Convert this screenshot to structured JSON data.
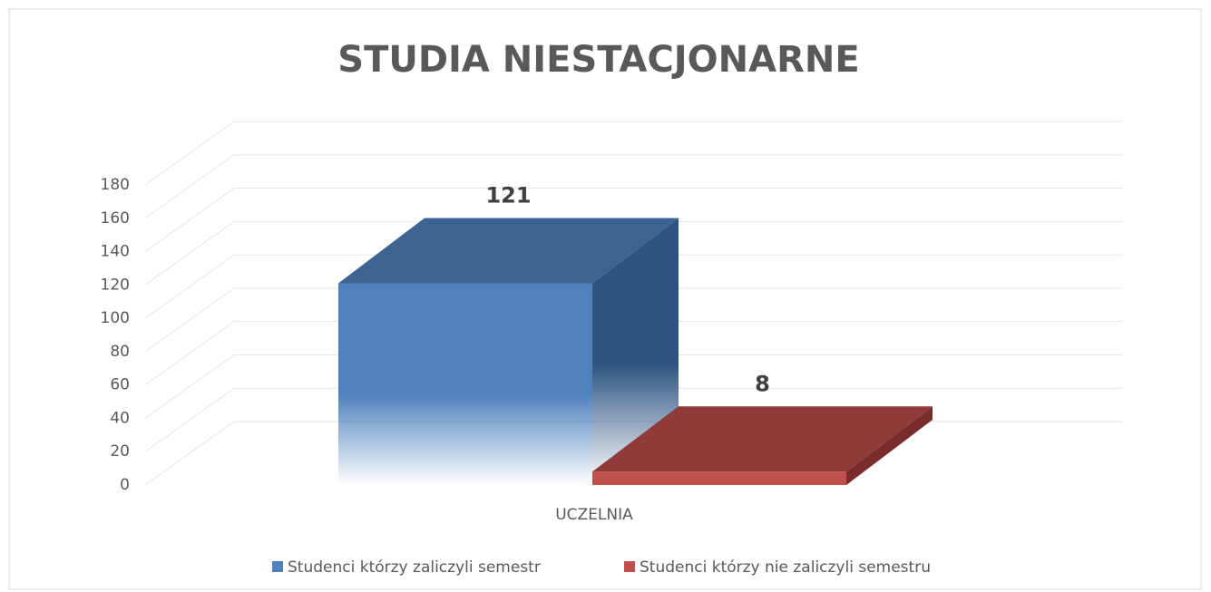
{
  "chart_data": {
    "type": "bar",
    "title": "STUDIA NIESTACJONARNE",
    "categories": [
      "UCZELNIA"
    ],
    "series": [
      {
        "name": "Studenci którzy zaliczyli semestr",
        "color": "#4f81bd",
        "values": [
          121
        ]
      },
      {
        "name": "Studenci którzy nie zaliczyli semestru",
        "color": "#c0504d",
        "values": [
          8
        ]
      }
    ],
    "ylim": [
      0,
      180
    ],
    "yticks": [
      0,
      20,
      40,
      60,
      80,
      100,
      120,
      140,
      160,
      180
    ],
    "grid": true,
    "legend": "bottom"
  }
}
